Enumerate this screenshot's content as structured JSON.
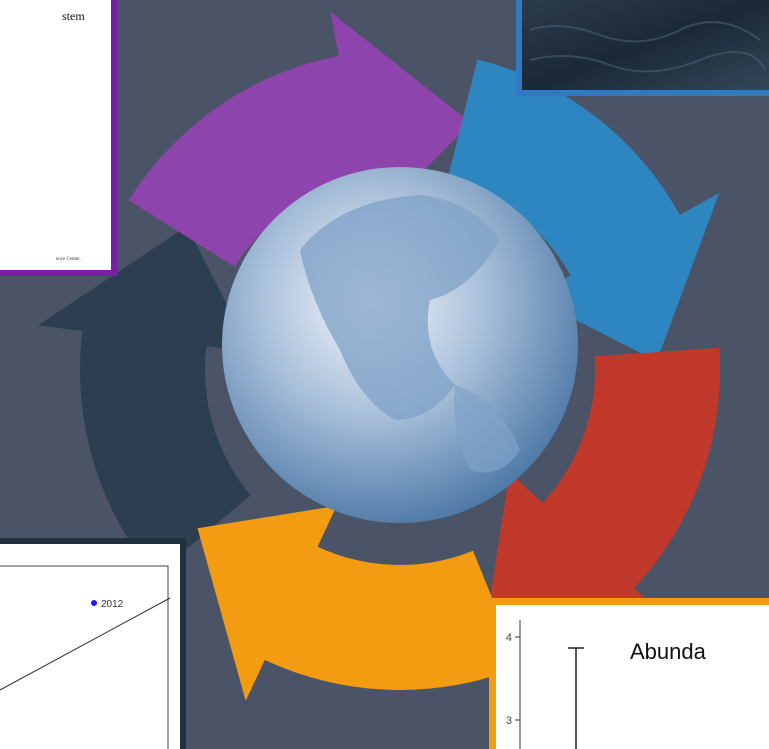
{
  "panels": {
    "document": {
      "heading": "stem",
      "footer": "ence Center."
    },
    "scatter": {
      "point_label": "2012"
    },
    "abundance": {
      "title": "Abunda",
      "yticks": [
        "4",
        "3"
      ]
    }
  }
}
